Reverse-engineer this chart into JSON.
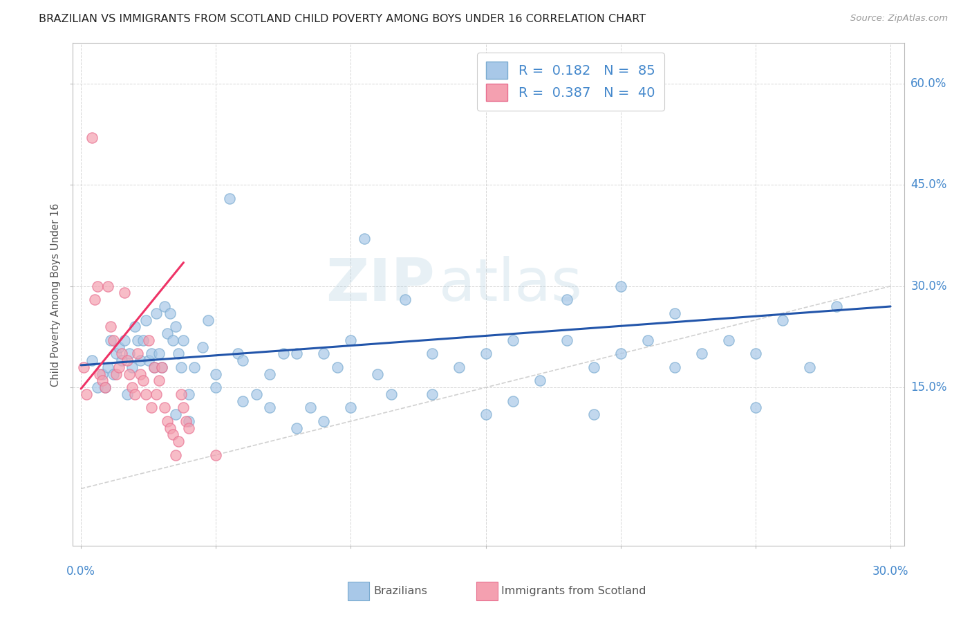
{
  "title": "BRAZILIAN VS IMMIGRANTS FROM SCOTLAND CHILD POVERTY AMONG BOYS UNDER 16 CORRELATION CHART",
  "source": "Source: ZipAtlas.com",
  "ylabel": "Child Poverty Among Boys Under 16",
  "ytick_vals": [
    0.15,
    0.3,
    0.45,
    0.6
  ],
  "ytick_labels": [
    "15.0%",
    "30.0%",
    "45.0%",
    "60.0%"
  ],
  "xtick_vals": [
    0.0,
    0.05,
    0.1,
    0.15,
    0.2,
    0.25,
    0.3
  ],
  "xlim": [
    -0.003,
    0.305
  ],
  "ylim": [
    -0.085,
    0.66
  ],
  "blue_color": "#A8C8E8",
  "pink_color": "#F4A0B0",
  "blue_marker_edge": "#7AABD0",
  "pink_marker_edge": "#E87090",
  "blue_trend_color": "#2255AA",
  "pink_trend_color": "#EE3366",
  "diag_color": "#CCCCCC",
  "blue_scatter_x": [
    0.004,
    0.006,
    0.008,
    0.009,
    0.01,
    0.011,
    0.012,
    0.013,
    0.014,
    0.015,
    0.016,
    0.017,
    0.018,
    0.019,
    0.02,
    0.021,
    0.022,
    0.023,
    0.024,
    0.025,
    0.026,
    0.027,
    0.028,
    0.029,
    0.03,
    0.031,
    0.032,
    0.033,
    0.034,
    0.035,
    0.036,
    0.037,
    0.038,
    0.04,
    0.042,
    0.045,
    0.047,
    0.05,
    0.055,
    0.058,
    0.06,
    0.065,
    0.07,
    0.075,
    0.08,
    0.085,
    0.09,
    0.095,
    0.1,
    0.105,
    0.11,
    0.115,
    0.12,
    0.13,
    0.14,
    0.15,
    0.16,
    0.17,
    0.18,
    0.19,
    0.2,
    0.21,
    0.22,
    0.23,
    0.24,
    0.25,
    0.26,
    0.27,
    0.28,
    0.2,
    0.18,
    0.15,
    0.25,
    0.22,
    0.09,
    0.07,
    0.05,
    0.04,
    0.035,
    0.06,
    0.08,
    0.1,
    0.13,
    0.16,
    0.19
  ],
  "blue_scatter_y": [
    0.19,
    0.15,
    0.17,
    0.15,
    0.18,
    0.22,
    0.17,
    0.2,
    0.21,
    0.19,
    0.22,
    0.14,
    0.2,
    0.18,
    0.24,
    0.22,
    0.19,
    0.22,
    0.25,
    0.19,
    0.2,
    0.18,
    0.26,
    0.2,
    0.18,
    0.27,
    0.23,
    0.26,
    0.22,
    0.24,
    0.2,
    0.18,
    0.22,
    0.14,
    0.18,
    0.21,
    0.25,
    0.17,
    0.43,
    0.2,
    0.19,
    0.14,
    0.17,
    0.2,
    0.2,
    0.12,
    0.2,
    0.18,
    0.22,
    0.37,
    0.17,
    0.14,
    0.28,
    0.2,
    0.18,
    0.2,
    0.22,
    0.16,
    0.22,
    0.18,
    0.2,
    0.22,
    0.18,
    0.2,
    0.22,
    0.2,
    0.25,
    0.18,
    0.27,
    0.3,
    0.28,
    0.11,
    0.12,
    0.26,
    0.1,
    0.12,
    0.15,
    0.1,
    0.11,
    0.13,
    0.09,
    0.12,
    0.14,
    0.13,
    0.11
  ],
  "pink_scatter_x": [
    0.001,
    0.002,
    0.004,
    0.005,
    0.006,
    0.007,
    0.008,
    0.009,
    0.01,
    0.011,
    0.012,
    0.013,
    0.014,
    0.015,
    0.016,
    0.017,
    0.018,
    0.019,
    0.02,
    0.021,
    0.022,
    0.023,
    0.024,
    0.025,
    0.026,
    0.027,
    0.028,
    0.029,
    0.03,
    0.031,
    0.032,
    0.033,
    0.034,
    0.035,
    0.036,
    0.037,
    0.038,
    0.039,
    0.04,
    0.05
  ],
  "pink_scatter_y": [
    0.18,
    0.14,
    0.52,
    0.28,
    0.3,
    0.17,
    0.16,
    0.15,
    0.3,
    0.24,
    0.22,
    0.17,
    0.18,
    0.2,
    0.29,
    0.19,
    0.17,
    0.15,
    0.14,
    0.2,
    0.17,
    0.16,
    0.14,
    0.22,
    0.12,
    0.18,
    0.14,
    0.16,
    0.18,
    0.12,
    0.1,
    0.09,
    0.08,
    0.05,
    0.07,
    0.14,
    0.12,
    0.1,
    0.09,
    0.05
  ],
  "blue_trend_x": [
    0.0,
    0.3
  ],
  "blue_trend_y": [
    0.183,
    0.27
  ],
  "pink_trend_x": [
    0.0,
    0.038
  ],
  "pink_trend_y": [
    0.148,
    0.335
  ]
}
